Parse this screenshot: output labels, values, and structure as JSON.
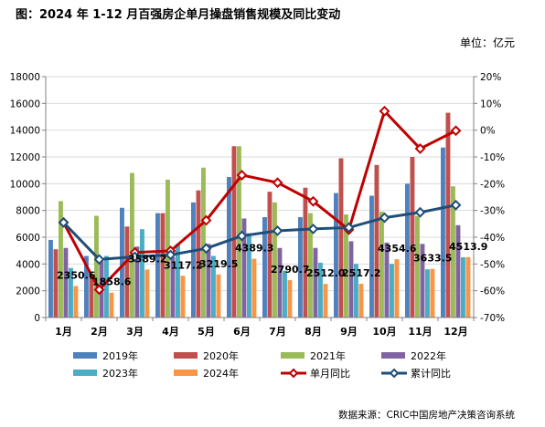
{
  "title": "图：2024 年 1-12 月百强房企单月操盘销售规模及同比变动",
  "unit": "单位：亿元",
  "source": "数据来源：CRIC中国房地产决策咨询系统",
  "chart_data": {
    "type": "bar",
    "categories": [
      "1月",
      "2月",
      "3月",
      "4月",
      "5月",
      "6月",
      "7月",
      "8月",
      "9月",
      "10月",
      "11月",
      "12月"
    ],
    "y_left": {
      "min": 0,
      "max": 18000,
      "step": 2000,
      "ticks": [
        "0",
        "2000",
        "4000",
        "6000",
        "8000",
        "10000",
        "12000",
        "14000",
        "16000",
        "18000"
      ]
    },
    "y_right": {
      "min": -70,
      "max": 20,
      "step": 10,
      "ticks": [
        "-70%",
        "-60%",
        "-50%",
        "-40%",
        "-30%",
        "-20%",
        "-10%",
        "0%",
        "10%",
        "20%"
      ]
    },
    "bar_series": [
      {
        "name": "2019年",
        "color": "#4f81bd",
        "values": [
          5800,
          4600,
          8200,
          7800,
          8600,
          10500,
          7500,
          7500,
          9300,
          9100,
          10000,
          12700
        ]
      },
      {
        "name": "2020年",
        "color": "#c0504d",
        "values": [
          5100,
          3200,
          6800,
          7800,
          9500,
          12800,
          9400,
          9700,
          11900,
          11400,
          12000,
          15300
        ]
      },
      {
        "name": "2021年",
        "color": "#9bbb59",
        "values": [
          8700,
          7600,
          10800,
          10300,
          11200,
          12800,
          8600,
          7800,
          7700,
          7900,
          7600,
          9800
        ]
      },
      {
        "name": "2022年",
        "color": "#8064a2",
        "values": [
          5200,
          4200,
          5300,
          4500,
          5500,
          7400,
          5200,
          5200,
          5700,
          5600,
          5500,
          6900
        ]
      },
      {
        "name": "2023年",
        "color": "#4bacc6",
        "values": [
          3700,
          4600,
          6600,
          5500,
          4600,
          6300,
          3500,
          4100,
          4000,
          4000,
          3600,
          4500
        ]
      },
      {
        "name": "2024年",
        "color": "#f79646",
        "values": [
          2350.6,
          1858.6,
          3589.2,
          3117.2,
          3219.5,
          4389.3,
          2790.7,
          2512.0,
          2517.2,
          4354.6,
          3633.5,
          4513.9
        ]
      }
    ],
    "data_labels": [
      "2350.6",
      "1858.6",
      "3589.2",
      "3117.2",
      "3219.5",
      "4389.3",
      "2790.7",
      "2512.0",
      "2517.2",
      "4354.6",
      "3633.5",
      "4513.9"
    ],
    "line_series": [
      {
        "name": "单月同比",
        "color": "#c00000",
        "values": [
          -34.5,
          -59.6,
          -45.7,
          -45.1,
          -33.7,
          -16.8,
          -19.6,
          -26.6,
          -37.2,
          7.1,
          -6.9,
          -0.2
        ]
      },
      {
        "name": "累计同比",
        "color": "#1f4e79",
        "values": [
          -34.5,
          -48.3,
          -47.3,
          -46.6,
          -44.2,
          -39.5,
          -37.6,
          -36.9,
          -36.4,
          -32.7,
          -30.7,
          -28.0
        ]
      }
    ],
    "legend": [
      "2019年",
      "2020年",
      "2021年",
      "2022年",
      "2023年",
      "2024年",
      "单月同比",
      "累计同比"
    ],
    "legend_position": "bottom",
    "grid": true
  }
}
